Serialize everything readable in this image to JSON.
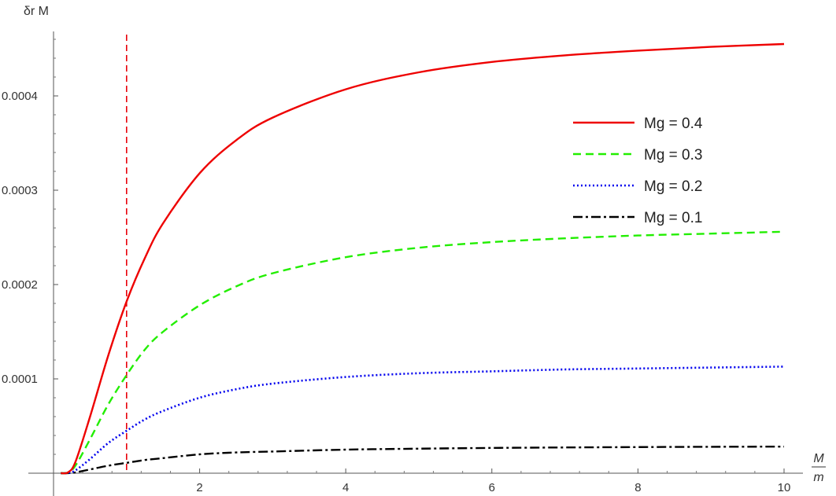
{
  "chart_data": {
    "type": "line",
    "title": "",
    "xlabel": "M/m",
    "xlabel_numerator": "M",
    "xlabel_denominator": "m",
    "ylabel": "δr M",
    "xlim": [
      0,
      10
    ],
    "ylim": [
      0,
      0.00047
    ],
    "x_ticks": [
      2,
      4,
      6,
      8,
      10
    ],
    "x_tick_labels": [
      "2",
      "4",
      "6",
      "8",
      "10"
    ],
    "y_ticks": [
      0.0001,
      0.0002,
      0.0003,
      0.0004
    ],
    "y_tick_labels": [
      "0.0001",
      "0.0002",
      "0.0003",
      "0.0004"
    ],
    "grid": false,
    "legend_position": "right",
    "vertical_reference_line": {
      "x": 1,
      "color": "#e8000b",
      "style": "dashed"
    },
    "x": [
      0.1,
      0.2,
      0.3,
      0.5,
      0.75,
      1.0,
      1.25,
      1.5,
      2.0,
      2.5,
      3.0,
      4.0,
      5.0,
      6.0,
      7.0,
      8.0,
      9.0,
      10.0
    ],
    "series": [
      {
        "name": "Mg = 0.4",
        "color": "#ee0000",
        "style": "solid",
        "values": [
          0.0,
          1e-06,
          1.2e-05,
          6e-05,
          0.000125,
          0.000182,
          0.000228,
          0.000265,
          0.000318,
          0.000353,
          0.000377,
          0.000407,
          0.000425,
          0.000436,
          0.000443,
          0.000448,
          0.000452,
          0.000455
        ]
      },
      {
        "name": "Mg = 0.3",
        "color": "#22ee00",
        "style": "dashed",
        "values": [
          0.0,
          8e-07,
          8e-06,
          3.6e-05,
          7.3e-05,
          0.000104,
          0.000131,
          0.00015,
          0.000178,
          0.000198,
          0.000212,
          0.000229,
          0.000239,
          0.000245,
          0.000249,
          0.000252,
          0.000254,
          0.000256
        ]
      },
      {
        "name": "Mg = 0.2",
        "color": "#0000ee",
        "style": "dotted",
        "values": [
          0.0,
          3e-07,
          3e-06,
          1.5e-05,
          3.2e-05,
          4.5e-05,
          5.7e-05,
          6.6e-05,
          8e-05,
          8.9e-05,
          9.5e-05,
          0.000102,
          0.000106,
          0.000108,
          0.00011,
          0.000111,
          0.000112,
          0.000113
        ]
      },
      {
        "name": "Mg = 0.1",
        "color": "#000000",
        "style": "dashdot",
        "values": [
          0.0,
          1e-07,
          8e-07,
          4e-06,
          8e-06,
          1.1e-05,
          1.4e-05,
          1.6e-05,
          2e-05,
          2.2e-05,
          2.3e-05,
          2.5e-05,
          2.6e-05,
          2.68e-05,
          2.73e-05,
          2.77e-05,
          2.8e-05,
          2.82e-05
        ]
      }
    ]
  }
}
